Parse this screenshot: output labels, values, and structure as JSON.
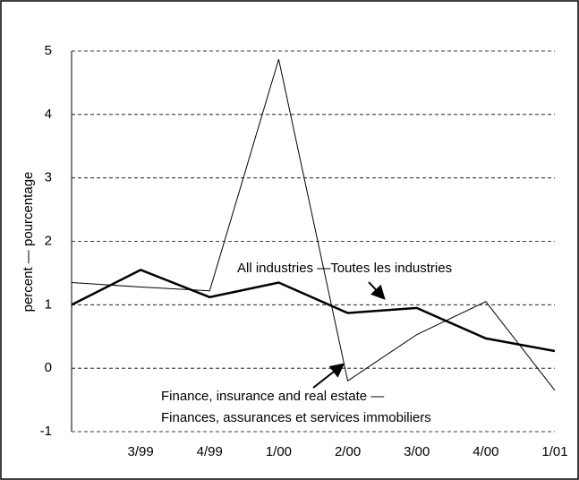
{
  "chart_data": {
    "type": "line",
    "y_label": "percent — pourcentage",
    "categories": [
      null,
      "3/99",
      "4/99",
      "1/00",
      "2/00",
      "3/00",
      "4/00",
      "1/01"
    ],
    "series": [
      {
        "name": "All industries —Toutes les industries",
        "color": "#000000",
        "width": 2.5,
        "values": [
          1.0,
          1.55,
          1.12,
          1.35,
          0.87,
          0.95,
          0.47,
          0.27
        ]
      },
      {
        "name": "Finance, insurance and real estate —",
        "name2": "Finances, assurances et services immobiliers",
        "color": "#000000",
        "width": 1,
        "values": [
          1.35,
          1.28,
          1.22,
          4.87,
          -0.2,
          0.53,
          1.05,
          -0.35
        ]
      }
    ],
    "ylim": [
      -1,
      5
    ],
    "yticks": [
      -1,
      0,
      1,
      2,
      3,
      4,
      5
    ],
    "grid": true
  }
}
